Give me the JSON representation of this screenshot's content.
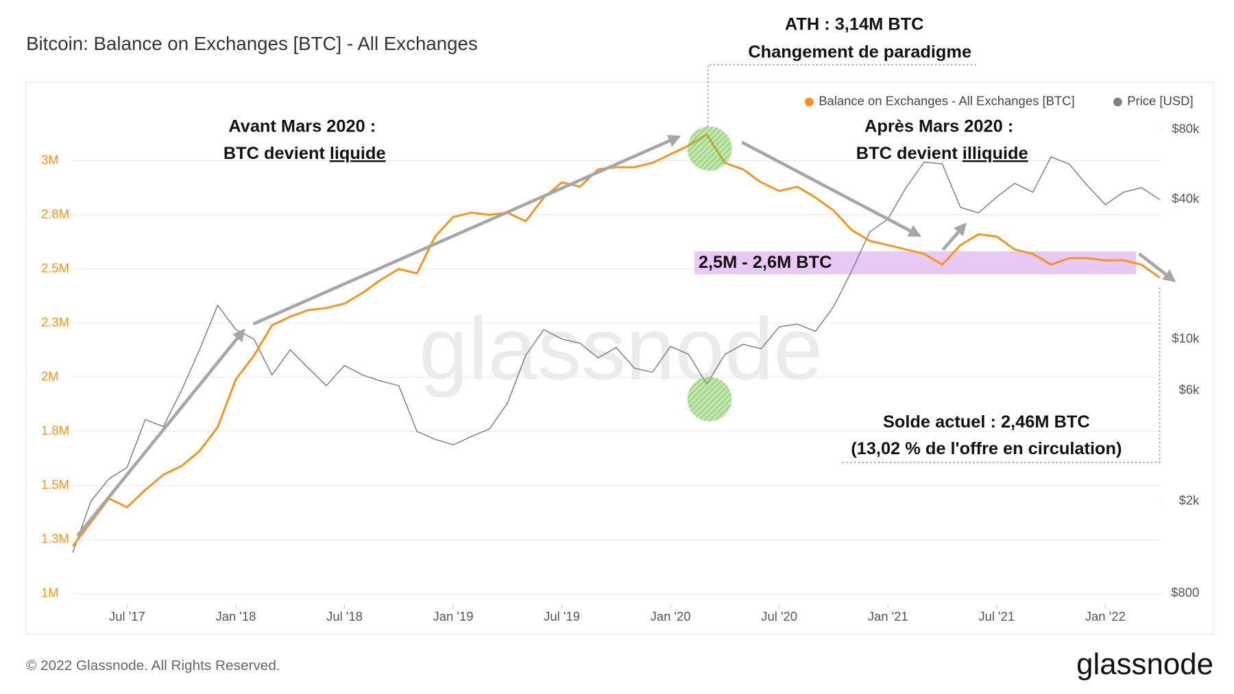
{
  "chart_data": {
    "type": "line",
    "title": "Bitcoin: Balance on Exchanges [BTC] - All Exchanges",
    "x": [
      "2017-04",
      "2017-05",
      "2017-06",
      "2017-07",
      "2017-08",
      "2017-09",
      "2017-10",
      "2017-11",
      "2017-12",
      "2018-01",
      "2018-02",
      "2018-03",
      "2018-04",
      "2018-05",
      "2018-06",
      "2018-07",
      "2018-08",
      "2018-09",
      "2018-10",
      "2018-11",
      "2018-12",
      "2019-01",
      "2019-02",
      "2019-03",
      "2019-04",
      "2019-05",
      "2019-06",
      "2019-07",
      "2019-08",
      "2019-09",
      "2019-10",
      "2019-11",
      "2019-12",
      "2020-01",
      "2020-02",
      "2020-03",
      "2020-04",
      "2020-05",
      "2020-06",
      "2020-07",
      "2020-08",
      "2020-09",
      "2020-10",
      "2020-11",
      "2020-12",
      "2021-01",
      "2021-02",
      "2021-03",
      "2021-04",
      "2021-05",
      "2021-06",
      "2021-07",
      "2021-08",
      "2021-09",
      "2021-10",
      "2021-11",
      "2021-12",
      "2022-01",
      "2022-02",
      "2022-03",
      "2022-04"
    ],
    "series": [
      {
        "name": "Balance on Exchanges - All Exchanges [BTC]",
        "color": "#f7931a",
        "values": [
          1220000,
          1330000,
          1440000,
          1400000,
          1480000,
          1550000,
          1590000,
          1660000,
          1770000,
          1990000,
          2100000,
          2240000,
          2280000,
          2310000,
          2320000,
          2340000,
          2390000,
          2450000,
          2500000,
          2480000,
          2650000,
          2740000,
          2760000,
          2750000,
          2760000,
          2720000,
          2830000,
          2900000,
          2880000,
          2960000,
          2970000,
          2970000,
          2990000,
          3030000,
          3070000,
          3120000,
          2990000,
          2960000,
          2900000,
          2860000,
          2880000,
          2830000,
          2770000,
          2680000,
          2630000,
          2610000,
          2590000,
          2570000,
          2520000,
          2610000,
          2660000,
          2650000,
          2590000,
          2570000,
          2520000,
          2550000,
          2550000,
          2540000,
          2540000,
          2520000,
          2460000
        ]
      },
      {
        "name": "Price [USD]",
        "color": "#7f7f7f",
        "axis": "y2",
        "values": [
          1200,
          2000,
          2500,
          2800,
          4500,
          4200,
          6000,
          9000,
          14000,
          11000,
          10000,
          7000,
          9000,
          7500,
          6300,
          7700,
          7000,
          6600,
          6300,
          4000,
          3700,
          3500,
          3800,
          4100,
          5300,
          8500,
          11000,
          10000,
          9600,
          8300,
          9200,
          7500,
          7200,
          9300,
          8600,
          6400,
          8600,
          9500,
          9100,
          11300,
          11600,
          10800,
          13800,
          19700,
          29000,
          33000,
          45000,
          58000,
          57000,
          37000,
          35000,
          41000,
          47000,
          43000,
          61000,
          57000,
          46000,
          38000,
          43000,
          45000,
          40000
        ]
      }
    ],
    "xlim": [
      "2017-04",
      "2022-04"
    ],
    "xticks": [
      {
        "value": "2017-07",
        "label": "Jul '17"
      },
      {
        "value": "2018-01",
        "label": "Jan '18"
      },
      {
        "value": "2018-07",
        "label": "Jul '18"
      },
      {
        "value": "2019-01",
        "label": "Jan '19"
      },
      {
        "value": "2019-07",
        "label": "Jul '19"
      },
      {
        "value": "2020-01",
        "label": "Jan '20"
      },
      {
        "value": "2020-07",
        "label": "Jul '20"
      },
      {
        "value": "2021-01",
        "label": "Jan '21"
      },
      {
        "value": "2021-07",
        "label": "Jul '21"
      },
      {
        "value": "2022-01",
        "label": "Jan '22"
      }
    ],
    "ylim": [
      950000,
      3220000
    ],
    "yticks": [
      {
        "value": 1000000,
        "label": "1M"
      },
      {
        "value": 1250000,
        "label": "1.3M"
      },
      {
        "value": 1500000,
        "label": "1.5M"
      },
      {
        "value": 1750000,
        "label": "1.8M"
      },
      {
        "value": 2000000,
        "label": "2M"
      },
      {
        "value": 2250000,
        "label": "2.3M"
      },
      {
        "value": 2500000,
        "label": "2.5M"
      },
      {
        "value": 2750000,
        "label": "2.8M"
      },
      {
        "value": 3000000,
        "label": "3M"
      }
    ],
    "y2lim": [
      716,
      94400
    ],
    "y2scale": "log",
    "y2ticks": [
      {
        "value": 800,
        "label": "$800"
      },
      {
        "value": 2000,
        "label": "$2k"
      },
      {
        "value": 6000,
        "label": "$6k"
      },
      {
        "value": 10000,
        "label": "$10k"
      },
      {
        "value": 40000,
        "label": "$40k"
      },
      {
        "value": 80000,
        "label": "$80k"
      }
    ],
    "grid": true,
    "legend": "top-right",
    "watermark": "glassnode",
    "annotations": {
      "ath": [
        "ATH : 3,14M BTC",
        "Changement de paradigme"
      ],
      "before": {
        "line1": "Avant Mars 2020 :",
        "text": "BTC devient",
        "underlined": "liquide"
      },
      "after": {
        "line1": "Après Mars 2020 :",
        "text": "BTC devient",
        "underlined": "illiquide"
      },
      "band": "2,5M - 2,6M BTC",
      "current": [
        "Solde actuel : 2,46M BTC",
        "(13,02 % de l'offre en circulation)"
      ]
    }
  },
  "footer": {
    "copyright": "© 2022 Glassnode. All Rights Reserved.",
    "logo": "glassnode"
  }
}
